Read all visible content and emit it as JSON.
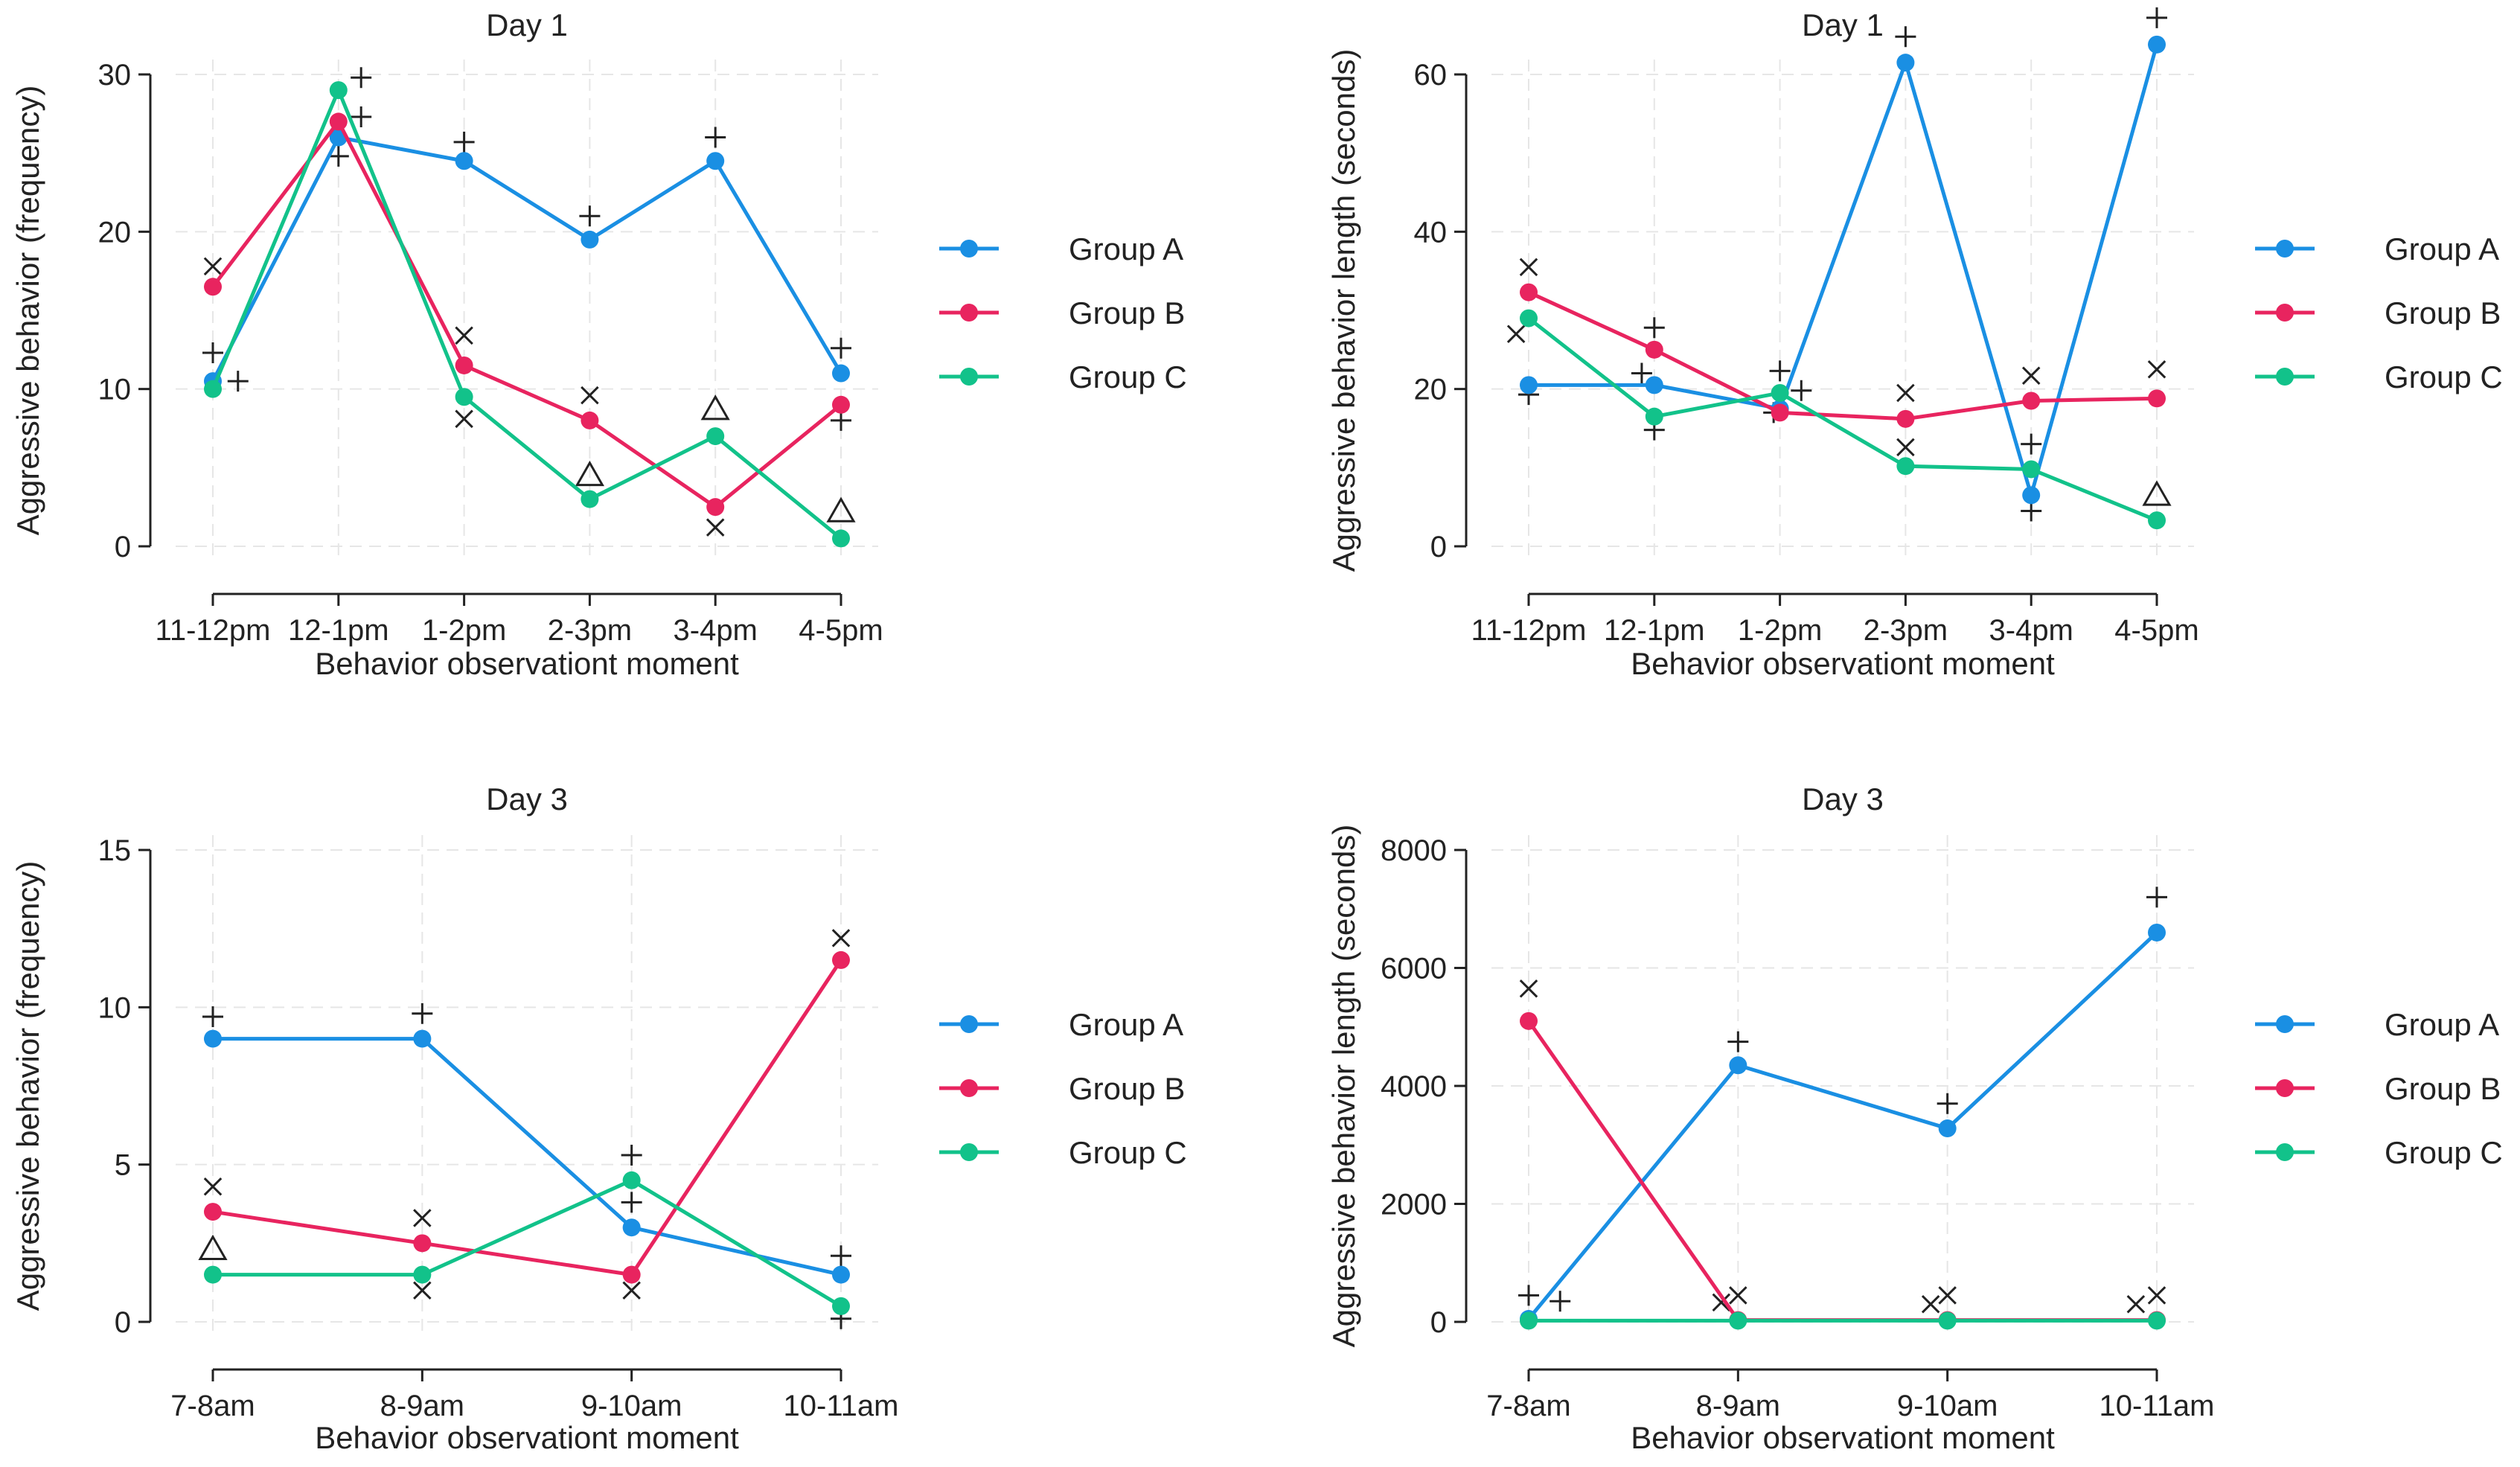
{
  "colors": {
    "group_a": "#1a8fe3",
    "group_b": "#e8245f",
    "group_c": "#12c28a",
    "axis": "#222222",
    "grid": "#e6e6e6",
    "marker": "#222222"
  },
  "chart_data": [
    {
      "type": "line",
      "title": "Day 1",
      "xlabel": "Behavior observationt moment",
      "ylabel": "Aggressive behavior (frequency)",
      "categories": [
        "11-12pm",
        "12-1pm",
        "1-2pm",
        "2-3pm",
        "3-4pm",
        "4-5pm"
      ],
      "ylim": [
        0,
        30
      ],
      "yticks": [
        0,
        10,
        20,
        30
      ],
      "legend": "right",
      "series": [
        {
          "name": "Group A",
          "color_key": "group_a",
          "values": [
            10.5,
            26,
            24.5,
            19.5,
            24.5,
            11
          ]
        },
        {
          "name": "Group B",
          "color_key": "group_b",
          "values": [
            16.5,
            27,
            11.5,
            8,
            2.5,
            9
          ]
        },
        {
          "name": "Group C",
          "color_key": "group_c",
          "values": [
            10,
            29,
            9.5,
            3,
            7,
            0.5
          ]
        }
      ],
      "markers": [
        {
          "symbol": "plus",
          "x": 0,
          "y": 12.3
        },
        {
          "symbol": "plus",
          "x": 0.2,
          "y": 10.5
        },
        {
          "symbol": "cross",
          "x": 0,
          "y": 17.8
        },
        {
          "symbol": "plus",
          "x": 1,
          "y": 24.8
        },
        {
          "symbol": "plus",
          "x": 1.18,
          "y": 27.3
        },
        {
          "symbol": "plus",
          "x": 1.18,
          "y": 29.8
        },
        {
          "symbol": "plus",
          "x": 2,
          "y": 25.7
        },
        {
          "symbol": "cross",
          "x": 2,
          "y": 13.4
        },
        {
          "symbol": "cross",
          "x": 2,
          "y": 8.1
        },
        {
          "symbol": "plus",
          "x": 3,
          "y": 21
        },
        {
          "symbol": "cross",
          "x": 3,
          "y": 9.6
        },
        {
          "symbol": "triangle",
          "x": 3,
          "y": 4.5
        },
        {
          "symbol": "plus",
          "x": 4,
          "y": 26
        },
        {
          "symbol": "triangle",
          "x": 4,
          "y": 8.7
        },
        {
          "symbol": "cross",
          "x": 4,
          "y": 1.2
        },
        {
          "symbol": "plus",
          "x": 5,
          "y": 12.6
        },
        {
          "symbol": "plus",
          "x": 5,
          "y": 8
        },
        {
          "symbol": "triangle",
          "x": 5,
          "y": 2.2
        }
      ]
    },
    {
      "type": "line",
      "title": "Day 1",
      "xlabel": "Behavior observationt moment",
      "ylabel": "Aggressive behavior length (seconds)",
      "categories": [
        "11-12pm",
        "12-1pm",
        "1-2pm",
        "2-3pm",
        "3-4pm",
        "4-5pm"
      ],
      "ylim": [
        0,
        60
      ],
      "yticks": [
        0,
        20,
        40,
        60
      ],
      "legend": "right",
      "series": [
        {
          "name": "Group A",
          "color_key": "group_a",
          "values": [
            20.5,
            20.5,
            17.5,
            61.5,
            6.5,
            63.8
          ]
        },
        {
          "name": "Group B",
          "color_key": "group_b",
          "values": [
            32.3,
            25,
            17,
            16.2,
            18.5,
            18.8
          ]
        },
        {
          "name": "Group C",
          "color_key": "group_c",
          "values": [
            29,
            16.5,
            19.5,
            10.2,
            9.8,
            3.3
          ]
        }
      ],
      "markers": [
        {
          "symbol": "cross",
          "x": 0,
          "y": 35.5
        },
        {
          "symbol": "cross",
          "x": -0.1,
          "y": 27
        },
        {
          "symbol": "plus",
          "x": 0,
          "y": 19.3
        },
        {
          "symbol": "plus",
          "x": 1,
          "y": 27.8
        },
        {
          "symbol": "plus",
          "x": 0.9,
          "y": 22
        },
        {
          "symbol": "plus",
          "x": 1,
          "y": 14.8
        },
        {
          "symbol": "plus",
          "x": 2,
          "y": 22.3
        },
        {
          "symbol": "plus",
          "x": 2.17,
          "y": 19.8
        },
        {
          "symbol": "plus",
          "x": 1.95,
          "y": 17
        },
        {
          "symbol": "plus",
          "x": 3,
          "y": 64.8
        },
        {
          "symbol": "cross",
          "x": 3,
          "y": 19.5
        },
        {
          "symbol": "cross",
          "x": 3,
          "y": 12.6
        },
        {
          "symbol": "cross",
          "x": 4,
          "y": 21.7
        },
        {
          "symbol": "plus",
          "x": 4,
          "y": 13
        },
        {
          "symbol": "plus",
          "x": 4,
          "y": 4.5
        },
        {
          "symbol": "plus",
          "x": 5,
          "y": 67.2
        },
        {
          "symbol": "cross",
          "x": 5,
          "y": 22.5
        },
        {
          "symbol": "triangle",
          "x": 5,
          "y": 6.5
        }
      ]
    },
    {
      "type": "line",
      "title": "Day 3",
      "xlabel": "Behavior observationt moment",
      "ylabel": "Aggressive behavior (frequency)",
      "categories": [
        "7-8am",
        "8-9am",
        "9-10am",
        "10-11am"
      ],
      "ylim": [
        0,
        15
      ],
      "yticks": [
        0,
        5,
        10,
        15
      ],
      "legend": "right",
      "series": [
        {
          "name": "Group A",
          "color_key": "group_a",
          "values": [
            9,
            9,
            3,
            1.5
          ]
        },
        {
          "name": "Group B",
          "color_key": "group_b",
          "values": [
            3.5,
            2.5,
            1.5,
            11.5
          ]
        },
        {
          "name": "Group C",
          "color_key": "group_c",
          "values": [
            1.5,
            1.5,
            4.5,
            0.5
          ]
        }
      ],
      "markers": [
        {
          "symbol": "plus",
          "x": 0,
          "y": 9.7
        },
        {
          "symbol": "cross",
          "x": 0,
          "y": 4.3
        },
        {
          "symbol": "triangle",
          "x": 0,
          "y": 2.3
        },
        {
          "symbol": "plus",
          "x": 1,
          "y": 9.8
        },
        {
          "symbol": "cross",
          "x": 1,
          "y": 3.3
        },
        {
          "symbol": "cross",
          "x": 1,
          "y": 1
        },
        {
          "symbol": "plus",
          "x": 2,
          "y": 5.3
        },
        {
          "symbol": "plus",
          "x": 2,
          "y": 3.8
        },
        {
          "symbol": "cross",
          "x": 2,
          "y": 1
        },
        {
          "symbol": "cross",
          "x": 3,
          "y": 12.2
        },
        {
          "symbol": "plus",
          "x": 3,
          "y": 2.1
        },
        {
          "symbol": "plus",
          "x": 3,
          "y": 0.1
        }
      ]
    },
    {
      "type": "line",
      "title": "Day 3",
      "xlabel": "Behavior observationt moment",
      "ylabel": "Aggressive behavior length (seconds)",
      "categories": [
        "7-8am",
        "8-9am",
        "9-10am",
        "10-11am"
      ],
      "ylim": [
        0,
        8000
      ],
      "yticks": [
        0,
        2000,
        4000,
        6000,
        8000
      ],
      "legend": "right",
      "series": [
        {
          "name": "Group A",
          "color_key": "group_a",
          "values": [
            50,
            4350,
            3280,
            6600
          ]
        },
        {
          "name": "Group B",
          "color_key": "group_b",
          "values": [
            5100,
            30,
            30,
            30
          ]
        },
        {
          "name": "Group C",
          "color_key": "group_c",
          "values": [
            20,
            20,
            20,
            20
          ]
        }
      ],
      "markers": [
        {
          "symbol": "cross",
          "x": 0,
          "y": 5650
        },
        {
          "symbol": "plus",
          "x": 0,
          "y": 450
        },
        {
          "symbol": "plus",
          "x": 0.15,
          "y": 350
        },
        {
          "symbol": "plus",
          "x": 1,
          "y": 4750
        },
        {
          "symbol": "cross",
          "x": 0.92,
          "y": 330
        },
        {
          "symbol": "cross",
          "x": 1,
          "y": 450
        },
        {
          "symbol": "plus",
          "x": 2,
          "y": 3700
        },
        {
          "symbol": "cross",
          "x": 1.92,
          "y": 300
        },
        {
          "symbol": "cross",
          "x": 2,
          "y": 450
        },
        {
          "symbol": "plus",
          "x": 3,
          "y": 7200
        },
        {
          "symbol": "cross",
          "x": 2.9,
          "y": 300
        },
        {
          "symbol": "cross",
          "x": 3,
          "y": 450
        }
      ]
    }
  ]
}
